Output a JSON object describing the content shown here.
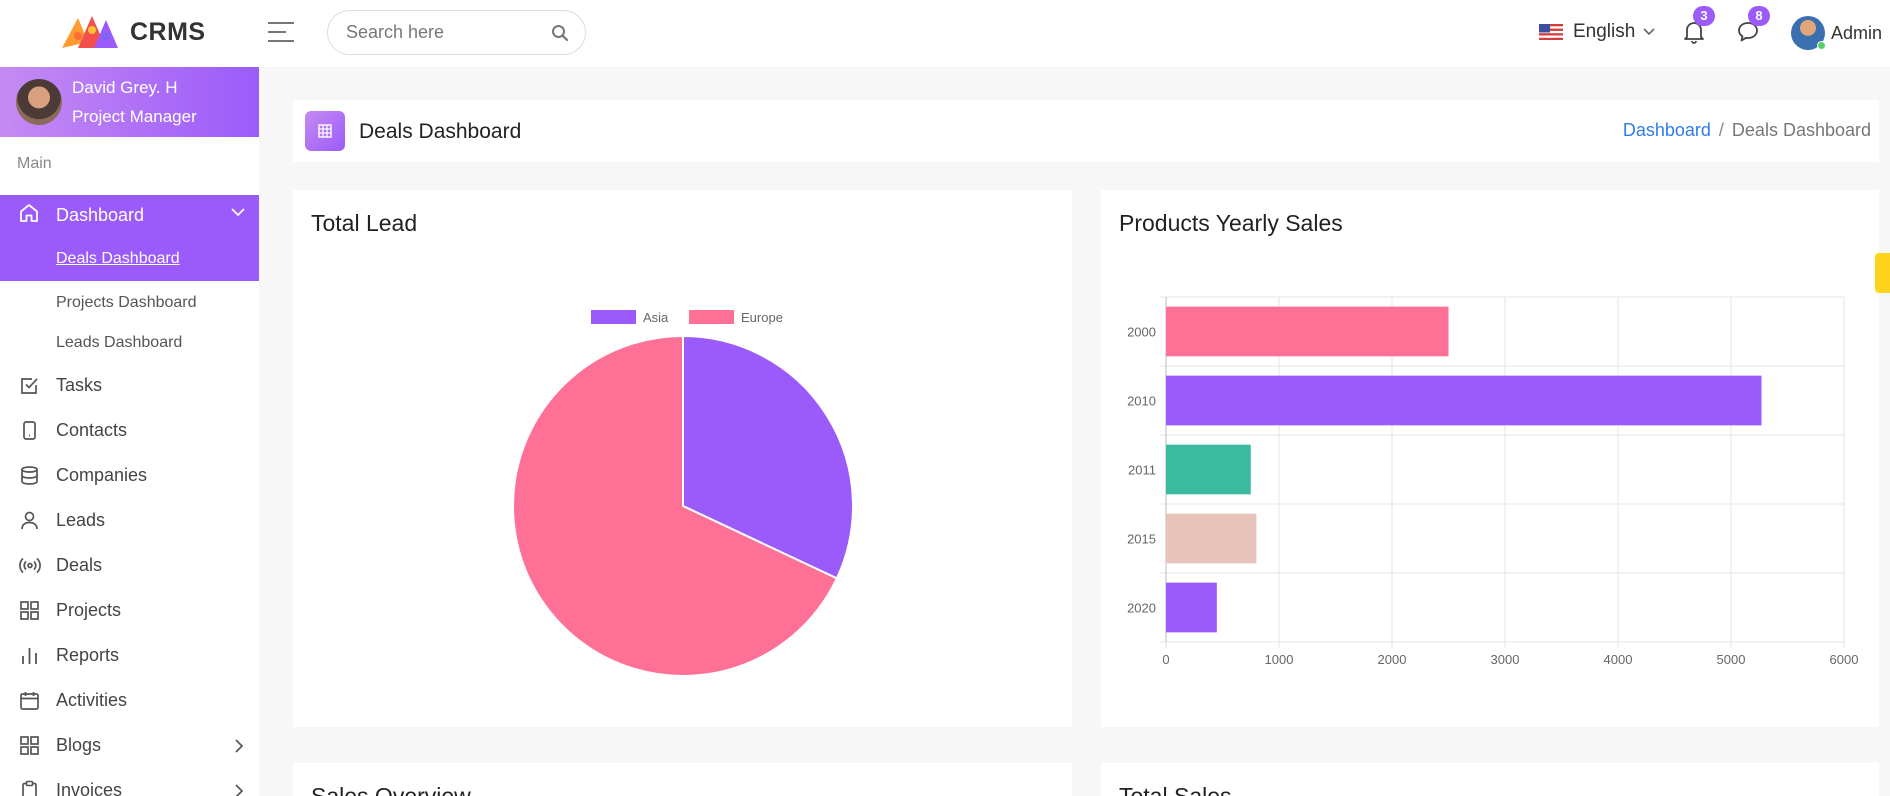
{
  "header": {
    "logo_text": "CRMS",
    "search_placeholder": "Search here",
    "language": "English",
    "notifications_count": "3",
    "messages_count": "8",
    "user_name": "Admin"
  },
  "sidebar": {
    "profile": {
      "name": "David Grey. H",
      "role": "Project Manager"
    },
    "section_title": "Main",
    "dashboard": {
      "label": "Dashboard",
      "active_sub": "Deals Dashboard",
      "subs": [
        "Projects Dashboard",
        "Leads Dashboard"
      ]
    },
    "items": [
      {
        "label": "Tasks",
        "icon": "checkbox-icon"
      },
      {
        "label": "Contacts",
        "icon": "phone-icon"
      },
      {
        "label": "Companies",
        "icon": "database-icon"
      },
      {
        "label": "Leads",
        "icon": "user-icon"
      },
      {
        "label": "Deals",
        "icon": "broadcast-icon"
      },
      {
        "label": "Projects",
        "icon": "grid-icon"
      },
      {
        "label": "Reports",
        "icon": "bar-chart-icon"
      },
      {
        "label": "Activities",
        "icon": "calendar-icon"
      },
      {
        "label": "Blogs",
        "icon": "grid-icon"
      },
      {
        "label": "Invoices",
        "icon": "clipboard-icon"
      }
    ]
  },
  "page": {
    "title": "Deals Dashboard",
    "breadcrumb": {
      "home": "Dashboard",
      "current": "Deals Dashboard"
    }
  },
  "cards": {
    "total_lead": "Total Lead",
    "products_yearly_sales": "Products Yearly Sales",
    "sales_overview": "Sales Overview",
    "total_sales": "Total Sales"
  },
  "colors": {
    "accent": "#9b5bfa",
    "pink": "#ff7096",
    "teal": "#3cba9f",
    "beige": "#e8c3b9"
  },
  "chart_data": [
    {
      "type": "pie",
      "categories": [
        "Asia",
        "Europe"
      ],
      "values": [
        32,
        68
      ],
      "colors": [
        "#9b5bfa",
        "#ff7096"
      ],
      "legend": "top"
    },
    {
      "type": "bar",
      "orientation": "horizontal",
      "categories": [
        "2000",
        "2010",
        "2011",
        "2015",
        "2020"
      ],
      "values": [
        2500,
        5270,
        750,
        800,
        450
      ],
      "colors": [
        "#ff7096",
        "#9b5bfa",
        "#3cba9f",
        "#e8c3b9",
        "#9b5bfa"
      ],
      "xlim": [
        0,
        6000
      ],
      "xticks": [
        "0",
        "1000",
        "2000",
        "3000",
        "4000",
        "5000",
        "6000"
      ],
      "grid": true
    }
  ]
}
